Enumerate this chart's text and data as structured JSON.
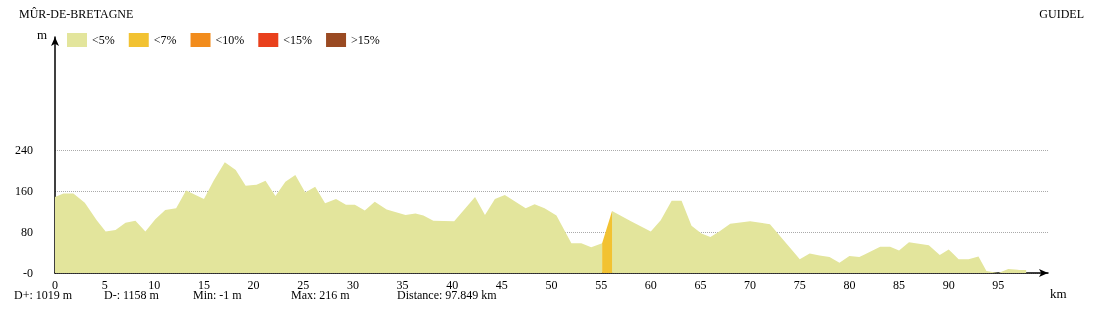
{
  "chart_data": {
    "type": "area",
    "title": "MÛR-DE-BRETAGNE",
    "xlabel": "km",
    "ylabel": "m",
    "annotations": [
      "GUIDEL",
      "D+: 1019 m",
      "D-: 1158 m",
      "Min: -1 m",
      "Max: 216 m",
      "Distance: 97.849 km"
    ],
    "xlim": [
      0,
      100
    ],
    "xticks": [
      0,
      5,
      10,
      15,
      20,
      25,
      30,
      35,
      40,
      45,
      50,
      55,
      60,
      65,
      70,
      75,
      80,
      85,
      90,
      95
    ],
    "ylim": [
      0,
      460
    ],
    "yticks": [
      {
        "value": 0,
        "label": "-0"
      },
      80,
      160,
      240
    ],
    "grid": "y",
    "legend": "top left",
    "series": [
      {
        "name": "<5%",
        "color": "#e3e59c",
        "x": [
          0,
          0.85,
          1.85,
          3.0,
          4.2,
          5.1,
          6.1,
          7.1,
          8.1,
          9.1,
          10.1,
          11.1,
          12.2,
          13.2,
          15.0,
          16.0,
          17.1,
          18.2,
          19.2,
          20.3,
          21.2,
          22.2,
          23.2,
          24.2,
          25.2,
          26.2,
          27.2,
          28.3,
          29.3,
          30.2,
          31.2,
          32.2,
          33.4,
          35.3,
          36.3,
          37.1,
          38.1,
          40.2,
          42.3,
          43.3,
          44.3,
          45.3,
          47.4,
          48.3,
          49.3,
          50.5,
          52.0,
          53.0,
          54.0,
          55.1,
          55.6,
          56.1,
          58.0,
          60.0,
          61.0,
          62.1,
          63.1,
          64.1,
          65.1,
          66.0,
          66.9,
          68.0,
          70.0,
          72.0,
          75.0,
          76.0,
          77.0,
          78.0,
          79.0,
          80.0,
          81.0,
          83.1,
          84.1,
          85.0,
          86.0,
          88.0,
          89.1,
          90.0,
          91.0,
          92.0,
          93.0,
          93.8,
          95.0,
          96.0,
          97.1,
          97.8
        ],
        "values": [
          148,
          155,
          155,
          137,
          103,
          81,
          84,
          98,
          102,
          81,
          105,
          123,
          126,
          161,
          144,
          181,
          216,
          201,
          170,
          172,
          180,
          150,
          178,
          191,
          157,
          168,
          136,
          144,
          133,
          133,
          122,
          139,
          124,
          113,
          116,
          112,
          102,
          101,
          148,
          113,
          144,
          152,
          126,
          134,
          126,
          112,
          58,
          58,
          50,
          58,
          null,
          121,
          101,
          81,
          103,
          141,
          141,
          92,
          77,
          70,
          81,
          96,
          101,
          95,
          27,
          38,
          34,
          31,
          20,
          33,
          31,
          51,
          51,
          44,
          60,
          54,
          35,
          46,
          27,
          27,
          32,
          4,
          0,
          8,
          6,
          6
        ]
      },
      {
        "name": "<7%",
        "color": "#f2c232",
        "x": [
          55.1,
          56.1
        ],
        "values": [
          58,
          121
        ]
      },
      {
        "name": "<10%",
        "color": "#f28c1c"
      },
      {
        "name": "<15%",
        "color": "#e9401c"
      },
      {
        "name": ">15%",
        "color": "#9a4a22"
      }
    ]
  }
}
